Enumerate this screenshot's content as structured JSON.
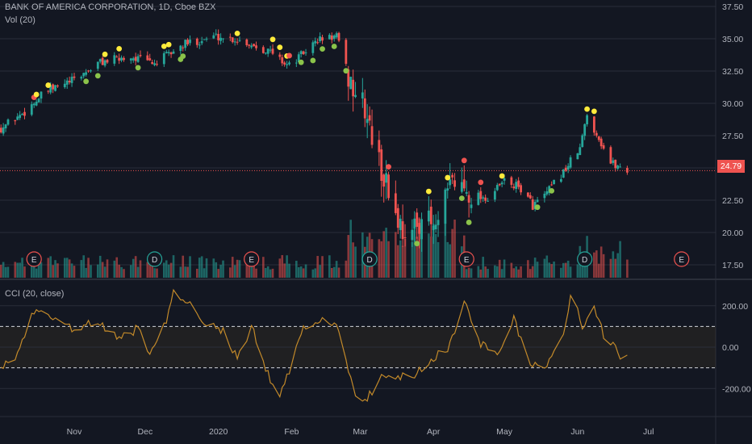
{
  "header": {
    "symbol_line": "BANK OF AMERICA CORPORATION, 1D, Cboe BZX",
    "volume_line": "Vol (20)",
    "indicator_line": "CCI (20, close)"
  },
  "last_price": "24.79",
  "colors": {
    "background": "#131722",
    "up": "#26a69a",
    "down": "#ef5350",
    "cci_line": "#c38a2a",
    "band_fill": "#c38a2a",
    "dot_yellow": "#ffeb3b",
    "dot_green": "#8bc34a",
    "dot_red": "#ef5350",
    "axis_text": "#b2b5be",
    "divider": "#2a2e39"
  },
  "events": [
    {
      "type": "E",
      "date": "Oct 15"
    },
    {
      "type": "D",
      "date": "Dec 5"
    },
    {
      "type": "E",
      "date": "Jan 15"
    },
    {
      "type": "D",
      "date": "Mar 5"
    },
    {
      "type": "E",
      "date": "Apr 15"
    },
    {
      "type": "D",
      "date": "Jun 4"
    },
    {
      "type": "E",
      "date": "Jul 15"
    }
  ],
  "chart_data": [
    {
      "type": "candlestick",
      "title": "BANK OF AMERICA CORPORATION, 1D, Cboe BZX",
      "x_ticks": [
        "Nov",
        "Dec",
        "2020",
        "Feb",
        "Mar",
        "Apr",
        "May",
        "Jun",
        "Jul"
      ],
      "y_ticks": [
        "17.50",
        "20.00",
        "22.50",
        "25.00",
        "27.50",
        "30.00",
        "32.50",
        "35.00",
        "37.50"
      ],
      "ylim": [
        16.5,
        38
      ],
      "current_price": 24.79,
      "close_anchors": [
        {
          "date": "Oct 1",
          "close": 28.1
        },
        {
          "date": "Oct 10",
          "close": 29.2
        },
        {
          "date": "Oct 20",
          "close": 30.9
        },
        {
          "date": "Nov 1",
          "close": 31.8
        },
        {
          "date": "Nov 12",
          "close": 33.2
        },
        {
          "date": "Nov 25",
          "close": 33.6
        },
        {
          "date": "Dec 5",
          "close": 33.1
        },
        {
          "date": "Dec 18",
          "close": 34.6
        },
        {
          "date": "Dec 31",
          "close": 35.2
        },
        {
          "date": "Jan 10",
          "close": 34.9
        },
        {
          "date": "Jan 22",
          "close": 34.1
        },
        {
          "date": "Jan 31",
          "close": 32.9
        },
        {
          "date": "Feb 12",
          "close": 34.9
        },
        {
          "date": "Feb 20",
          "close": 35.2
        },
        {
          "date": "Feb 26",
          "close": 31.5
        },
        {
          "date": "Mar 3",
          "close": 29.5
        },
        {
          "date": "Mar 9",
          "close": 25.3
        },
        {
          "date": "Mar 13",
          "close": 23.2
        },
        {
          "date": "Mar 18",
          "close": 20.5
        },
        {
          "date": "Mar 23",
          "close": 19.8
        },
        {
          "date": "Mar 27",
          "close": 21.4
        },
        {
          "date": "Apr 2",
          "close": 20.1
        },
        {
          "date": "Apr 9",
          "close": 24.0
        },
        {
          "date": "Apr 17",
          "close": 23.1
        },
        {
          "date": "Apr 24",
          "close": 22.6
        },
        {
          "date": "May 1",
          "close": 24.0
        },
        {
          "date": "May 8",
          "close": 23.4
        },
        {
          "date": "May 13",
          "close": 22.1
        },
        {
          "date": "May 18",
          "close": 22.8
        },
        {
          "date": "May 26",
          "close": 24.7
        },
        {
          "date": "Jun 2",
          "close": 26.5
        },
        {
          "date": "Jun 5",
          "close": 29.1
        },
        {
          "date": "Jun 10",
          "close": 27.3
        },
        {
          "date": "Jun 15",
          "close": 25.4
        },
        {
          "date": "Jun 22",
          "close": 24.79
        }
      ]
    },
    {
      "type": "bar",
      "title": "Vol (20)",
      "note": "volume histogram overlaid at the bottom of the price pane"
    },
    {
      "type": "line",
      "title": "CCI (20, close)",
      "y_ticks": [
        "200.00",
        "0.00",
        "-200.00"
      ],
      "ylim": [
        -320,
        320
      ],
      "bands": [
        100,
        -100
      ],
      "anchors": [
        {
          "date": "Oct 1",
          "value": -100
        },
        {
          "date": "Oct 8",
          "value": -30
        },
        {
          "date": "Oct 15",
          "value": 170
        },
        {
          "date": "Oct 22",
          "value": 150
        },
        {
          "date": "Nov 1",
          "value": 80
        },
        {
          "date": "Nov 10",
          "value": 120
        },
        {
          "date": "Nov 20",
          "value": 40
        },
        {
          "date": "Nov 28",
          "value": 90
        },
        {
          "date": "Dec 3",
          "value": -50
        },
        {
          "date": "Dec 10",
          "value": 130
        },
        {
          "date": "Dec 13",
          "value": 280
        },
        {
          "date": "Dec 20",
          "value": 200
        },
        {
          "date": "Dec 27",
          "value": 120
        },
        {
          "date": "Jan 3",
          "value": 80
        },
        {
          "date": "Jan 9",
          "value": -60
        },
        {
          "date": "Jan 15",
          "value": 100
        },
        {
          "date": "Jan 22",
          "value": -130
        },
        {
          "date": "Jan 27",
          "value": -250
        },
        {
          "date": "Jan 31",
          "value": -110
        },
        {
          "date": "Feb 6",
          "value": 90
        },
        {
          "date": "Feb 14",
          "value": 140
        },
        {
          "date": "Feb 21",
          "value": 90
        },
        {
          "date": "Feb 27",
          "value": -210
        },
        {
          "date": "Mar 3",
          "value": -260
        },
        {
          "date": "Mar 10",
          "value": -150
        },
        {
          "date": "Mar 17",
          "value": -150
        },
        {
          "date": "Mar 24",
          "value": -130
        },
        {
          "date": "Mar 31",
          "value": -60
        },
        {
          "date": "Apr 7",
          "value": -10
        },
        {
          "date": "Apr 14",
          "value": 220
        },
        {
          "date": "Apr 21",
          "value": 20
        },
        {
          "date": "Apr 28",
          "value": -30
        },
        {
          "date": "May 5",
          "value": 130
        },
        {
          "date": "May 12",
          "value": -80
        },
        {
          "date": "May 18",
          "value": -100
        },
        {
          "date": "May 26",
          "value": 60
        },
        {
          "date": "May 29",
          "value": 250
        },
        {
          "date": "Jun 3",
          "value": 110
        },
        {
          "date": "Jun 8",
          "value": 180
        },
        {
          "date": "Jun 12",
          "value": 60
        },
        {
          "date": "Jun 16",
          "value": 10
        },
        {
          "date": "Jun 19",
          "value": -50
        },
        {
          "date": "Jun 23",
          "value": -50
        }
      ]
    }
  ]
}
